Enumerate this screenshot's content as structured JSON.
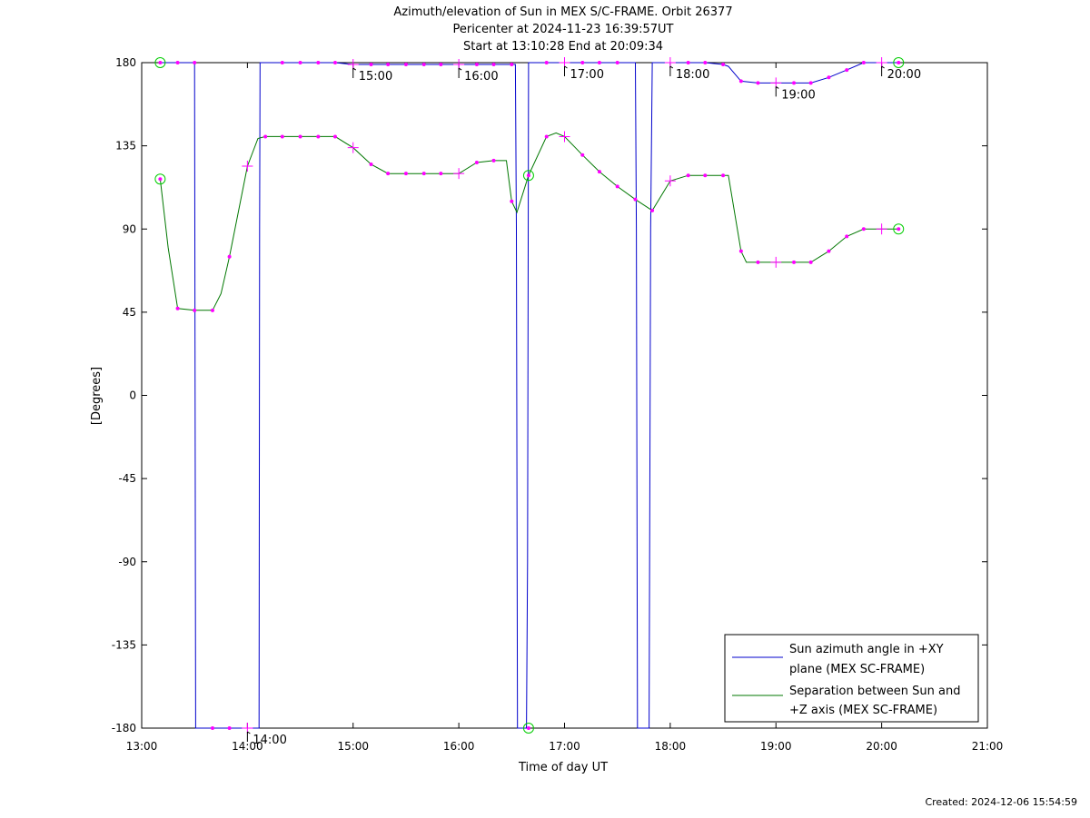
{
  "chart_data": {
    "type": "line",
    "title_lines": [
      "Azimuth/elevation of Sun in MEX S/C-FRAME.  Orbit 26377",
      "Pericenter at 2024-11-23 16:39:57UT",
      "Start at 13:10:28 End at 20:09:34"
    ],
    "xlabel": "Time of day UT",
    "ylabel": "[Degrees]",
    "xlim": [
      13.0,
      21.0
    ],
    "ylim": [
      -180,
      180
    ],
    "x_ticks": [
      {
        "v": 13,
        "label": "13:00"
      },
      {
        "v": 14,
        "label": "14:00"
      },
      {
        "v": 15,
        "label": "15:00"
      },
      {
        "v": 16,
        "label": "16:00"
      },
      {
        "v": 17,
        "label": "17:00"
      },
      {
        "v": 18,
        "label": "18:00"
      },
      {
        "v": 19,
        "label": "19:00"
      },
      {
        "v": 20,
        "label": "20:00"
      },
      {
        "v": 21,
        "label": "21:00"
      }
    ],
    "y_ticks": [
      {
        "v": 180,
        "label": "180"
      },
      {
        "v": 135,
        "label": "135"
      },
      {
        "v": 90,
        "label": "90"
      },
      {
        "v": 45,
        "label": "45"
      },
      {
        "v": 0,
        "label": "0"
      },
      {
        "v": -45,
        "label": "-45"
      },
      {
        "v": -90,
        "label": "-90"
      },
      {
        "v": -135,
        "label": "-135"
      },
      {
        "v": -180,
        "label": "-180"
      }
    ],
    "legend_position": "bottom-right",
    "series": [
      {
        "name": "Sun azimuth angle in +XY plane (MEX SC-FRAME)",
        "legend_lines": [
          "Sun azimuth angle in +XY",
          "plane (MEX SC-FRAME)"
        ],
        "color": "#0000cc",
        "points": [
          [
            13.175,
            180
          ],
          [
            13.34,
            180
          ],
          [
            13.5,
            180
          ],
          [
            13.505,
            0
          ],
          [
            13.51,
            -180
          ],
          [
            13.67,
            -180
          ],
          [
            13.83,
            -180
          ],
          [
            14.0,
            -180
          ],
          [
            14.11,
            -180
          ],
          [
            14.115,
            90
          ],
          [
            14.12,
            180
          ],
          [
            14.33,
            180
          ],
          [
            14.5,
            180
          ],
          [
            14.67,
            180
          ],
          [
            14.83,
            180
          ],
          [
            15.0,
            179
          ],
          [
            15.17,
            179
          ],
          [
            15.33,
            179
          ],
          [
            15.5,
            179
          ],
          [
            15.67,
            179
          ],
          [
            15.83,
            179
          ],
          [
            16.0,
            179
          ],
          [
            16.17,
            179
          ],
          [
            16.33,
            179
          ],
          [
            16.5,
            179
          ],
          [
            16.535,
            179
          ],
          [
            16.545,
            90
          ],
          [
            16.555,
            -180
          ],
          [
            16.64,
            -180
          ],
          [
            16.65,
            -90
          ],
          [
            16.66,
            180
          ],
          [
            16.83,
            180
          ],
          [
            17.0,
            180
          ],
          [
            17.17,
            180
          ],
          [
            17.33,
            180
          ],
          [
            17.5,
            180
          ],
          [
            17.67,
            180
          ],
          [
            17.68,
            90
          ],
          [
            17.69,
            -180
          ],
          [
            17.8,
            -180
          ],
          [
            17.815,
            90
          ],
          [
            17.83,
            180
          ],
          [
            18.0,
            180
          ],
          [
            18.17,
            180
          ],
          [
            18.33,
            180
          ],
          [
            18.5,
            179
          ],
          [
            18.55,
            178
          ],
          [
            18.67,
            170
          ],
          [
            18.83,
            169
          ],
          [
            19.0,
            169
          ],
          [
            19.17,
            169
          ],
          [
            19.33,
            169
          ],
          [
            19.5,
            172
          ],
          [
            19.67,
            176
          ],
          [
            19.83,
            180
          ],
          [
            20.0,
            180
          ],
          [
            20.16,
            180
          ]
        ],
        "markers": [
          [
            13.34,
            180
          ],
          [
            13.5,
            180
          ],
          [
            13.67,
            -180
          ],
          [
            13.83,
            -180
          ],
          [
            14.33,
            180
          ],
          [
            14.5,
            180
          ],
          [
            14.67,
            180
          ],
          [
            14.83,
            180
          ],
          [
            15.17,
            179
          ],
          [
            15.33,
            179
          ],
          [
            15.5,
            179
          ],
          [
            15.67,
            179
          ],
          [
            15.83,
            179
          ],
          [
            16.17,
            179
          ],
          [
            16.33,
            179
          ],
          [
            16.5,
            179
          ],
          [
            16.83,
            180
          ],
          [
            17.17,
            180
          ],
          [
            17.33,
            180
          ],
          [
            17.5,
            180
          ],
          [
            18.17,
            180
          ],
          [
            18.33,
            180
          ],
          [
            18.5,
            179
          ],
          [
            18.67,
            170
          ],
          [
            18.83,
            169
          ],
          [
            19.17,
            169
          ],
          [
            19.33,
            169
          ],
          [
            19.5,
            172
          ],
          [
            19.67,
            176
          ],
          [
            19.83,
            180
          ]
        ]
      },
      {
        "name": "Separation between Sun and +Z axis (MEX SC-FRAME)",
        "legend_lines": [
          "Separation between Sun and",
          "+Z axis (MEX SC-FRAME)"
        ],
        "color": "#007700",
        "points": [
          [
            13.175,
            117
          ],
          [
            13.25,
            80
          ],
          [
            13.34,
            47
          ],
          [
            13.5,
            46
          ],
          [
            13.67,
            46
          ],
          [
            13.75,
            55
          ],
          [
            13.83,
            75
          ],
          [
            14.0,
            124
          ],
          [
            14.1,
            139
          ],
          [
            14.17,
            140
          ],
          [
            14.33,
            140
          ],
          [
            14.5,
            140
          ],
          [
            14.67,
            140
          ],
          [
            14.83,
            140
          ],
          [
            15.0,
            134
          ],
          [
            15.17,
            125
          ],
          [
            15.33,
            120
          ],
          [
            15.5,
            120
          ],
          [
            15.67,
            120
          ],
          [
            15.83,
            120
          ],
          [
            16.0,
            120
          ],
          [
            16.17,
            126
          ],
          [
            16.33,
            127
          ],
          [
            16.45,
            127
          ],
          [
            16.5,
            105
          ],
          [
            16.55,
            99
          ],
          [
            16.66,
            119
          ],
          [
            16.83,
            140
          ],
          [
            16.92,
            142
          ],
          [
            17.0,
            140
          ],
          [
            17.17,
            130
          ],
          [
            17.33,
            121
          ],
          [
            17.5,
            113
          ],
          [
            17.67,
            106
          ],
          [
            17.83,
            100
          ],
          [
            18.0,
            116
          ],
          [
            18.17,
            119
          ],
          [
            18.33,
            119
          ],
          [
            18.5,
            119
          ],
          [
            18.55,
            119
          ],
          [
            18.67,
            78
          ],
          [
            18.72,
            72
          ],
          [
            18.83,
            72
          ],
          [
            19.0,
            72
          ],
          [
            19.17,
            72
          ],
          [
            19.33,
            72
          ],
          [
            19.5,
            78
          ],
          [
            19.67,
            86
          ],
          [
            19.83,
            90
          ],
          [
            20.0,
            90
          ],
          [
            20.16,
            90
          ]
        ],
        "markers": [
          [
            13.34,
            47
          ],
          [
            13.5,
            46
          ],
          [
            13.67,
            46
          ],
          [
            13.83,
            75
          ],
          [
            14.17,
            140
          ],
          [
            14.33,
            140
          ],
          [
            14.5,
            140
          ],
          [
            14.67,
            140
          ],
          [
            14.83,
            140
          ],
          [
            15.17,
            125
          ],
          [
            15.33,
            120
          ],
          [
            15.5,
            120
          ],
          [
            15.67,
            120
          ],
          [
            15.83,
            120
          ],
          [
            16.17,
            126
          ],
          [
            16.33,
            127
          ],
          [
            16.5,
            105
          ],
          [
            16.83,
            140
          ],
          [
            17.17,
            130
          ],
          [
            17.33,
            121
          ],
          [
            17.5,
            113
          ],
          [
            17.67,
            106
          ],
          [
            17.83,
            100
          ],
          [
            18.17,
            119
          ],
          [
            18.33,
            119
          ],
          [
            18.5,
            119
          ],
          [
            18.67,
            78
          ],
          [
            18.83,
            72
          ],
          [
            19.17,
            72
          ],
          [
            19.33,
            72
          ],
          [
            19.5,
            78
          ],
          [
            19.67,
            86
          ],
          [
            19.83,
            90
          ]
        ]
      }
    ],
    "start_end_markers": [
      [
        13.175,
        180
      ],
      [
        13.175,
        117
      ],
      [
        20.16,
        180
      ],
      [
        20.16,
        90
      ],
      [
        16.66,
        119
      ],
      [
        16.66,
        -180
      ]
    ],
    "hour_crosses": [
      [
        14.0,
        124
      ],
      [
        15.0,
        134
      ],
      [
        16.0,
        120
      ],
      [
        17.0,
        140
      ],
      [
        18.0,
        116
      ],
      [
        19.0,
        72
      ],
      [
        20.0,
        90
      ],
      [
        15.0,
        179
      ],
      [
        16.0,
        179
      ],
      [
        17.0,
        180
      ],
      [
        18.0,
        180
      ],
      [
        19.0,
        169
      ],
      [
        20.0,
        180
      ],
      [
        14.0,
        -180
      ]
    ],
    "time_marks": [
      {
        "t": 14.0,
        "y": -180,
        "label": "14:00"
      },
      {
        "t": 15.0,
        "y": 179,
        "label": "15:00"
      },
      {
        "t": 16.0,
        "y": 179,
        "label": "16:00"
      },
      {
        "t": 17.0,
        "y": 180,
        "label": "17:00"
      },
      {
        "t": 18.0,
        "y": 180,
        "label": "18:00"
      },
      {
        "t": 19.0,
        "y": 169,
        "label": "19:00"
      },
      {
        "t": 20.0,
        "y": 180,
        "label": "20:00"
      }
    ],
    "colors": {
      "markers": "#ff00ff",
      "start_end_circles": "#00cc00"
    }
  },
  "footer": {
    "created": "Created: 2024-12-06 15:54:59"
  }
}
